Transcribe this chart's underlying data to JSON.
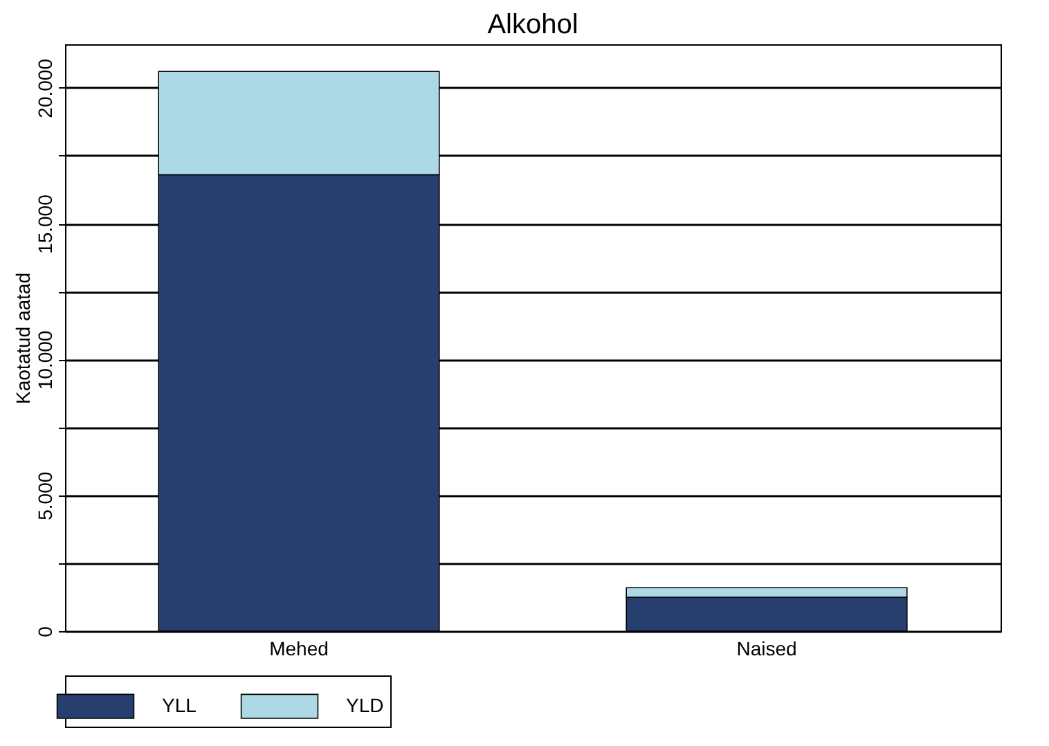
{
  "chart_data": {
    "type": "bar",
    "title": "Alkohol",
    "ylabel": "Kaotatud aatad",
    "categories": [
      "Mehed",
      "Naised"
    ],
    "series": [
      {
        "name": "YLL",
        "color": "#273f6e",
        "values": [
          16800,
          1250
        ]
      },
      {
        "name": "YLD",
        "color": "#add8e6",
        "values": [
          3800,
          350
        ]
      }
    ],
    "stacked": true,
    "ylim": [
      0,
      21600
    ],
    "yticks": [
      {
        "value": 0,
        "label": "0"
      },
      {
        "value": 2500,
        "label": null
      },
      {
        "value": 5000,
        "label": "5.000"
      },
      {
        "value": 7500,
        "label": null
      },
      {
        "value": 10000,
        "label": "10.000"
      },
      {
        "value": 12500,
        "label": null
      },
      {
        "value": 15000,
        "label": "15.000"
      },
      {
        "value": 17500,
        "label": null
      },
      {
        "value": 20000,
        "label": "20.000"
      }
    ],
    "grid": "y",
    "legend": "bottom"
  }
}
